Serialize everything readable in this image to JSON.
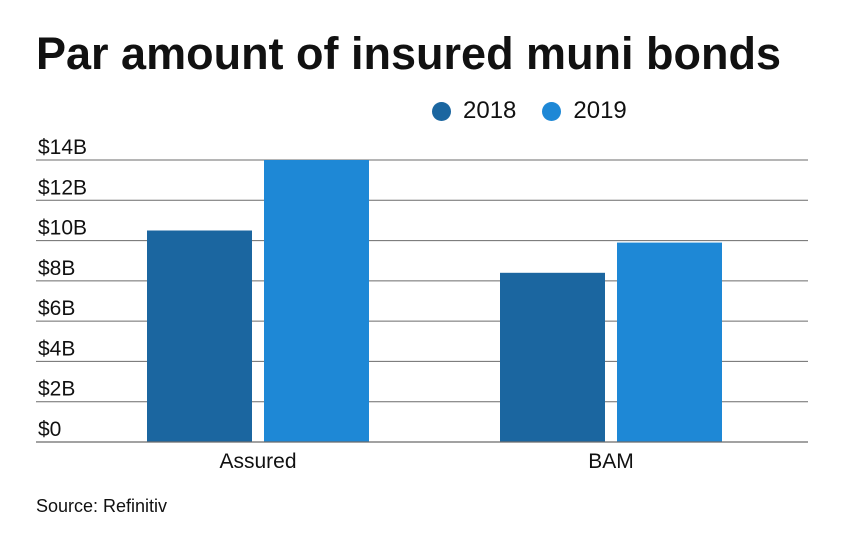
{
  "title": "Par amount of insured muni bonds",
  "source": "Source: Refinitiv",
  "colors": {
    "2018": "#1b66a0",
    "2019": "#1e88d6",
    "gridline": "#6b6b6b",
    "text": "#111111"
  },
  "chart_data": {
    "type": "bar",
    "title": "Par amount of insured muni bonds",
    "xlabel": "",
    "ylabel": "",
    "categories": [
      "Assured",
      "BAM"
    ],
    "series": [
      {
        "name": "2018",
        "values": [
          10.5,
          8.4
        ]
      },
      {
        "name": "2019",
        "values": [
          14.0,
          9.9
        ]
      }
    ],
    "ylim": [
      0,
      14
    ],
    "yticks": [
      0,
      2,
      4,
      6,
      8,
      10,
      12,
      14
    ],
    "ytick_labels": [
      "$0",
      "$2B",
      "$4B",
      "$6B",
      "$8B",
      "$10B",
      "$12B",
      "$14B"
    ],
    "legend_position": "top-right",
    "grid": "horizontal"
  }
}
